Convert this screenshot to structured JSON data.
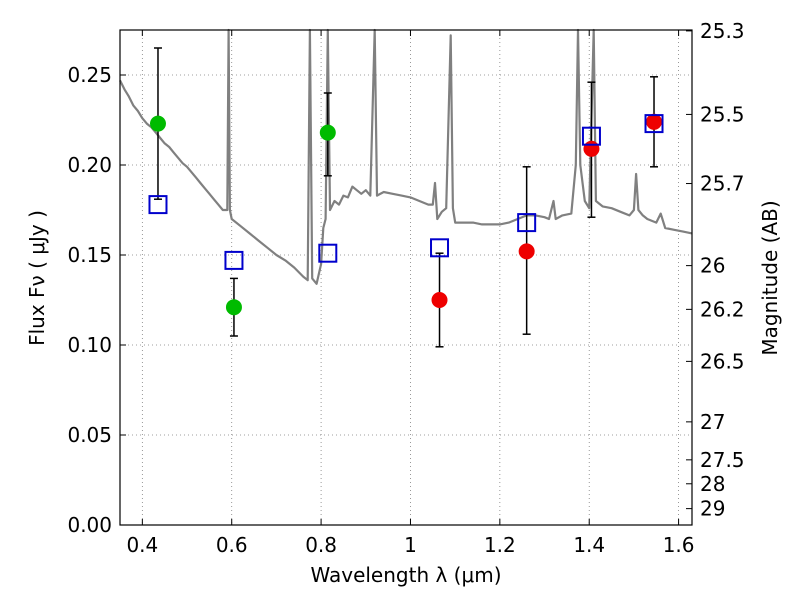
{
  "chart_data": {
    "type": "scatter",
    "xlabel": "Wavelength  λ (μm)",
    "ylabel": "Flux  Fν  ( μJy )",
    "ylabel_right": "Magnitude (AB)",
    "xlim": [
      0.35,
      1.63
    ],
    "ylim": [
      0.0,
      0.275
    ],
    "grid": true,
    "x_ticks": [
      0.4,
      0.6,
      0.8,
      1.0,
      1.2,
      1.4,
      1.6
    ],
    "x_tick_labels": [
      "0.4",
      "0.6",
      "0.8",
      "1",
      "1.2",
      "1.4",
      "1.6"
    ],
    "y_ticks": [
      0.0,
      0.05,
      0.1,
      0.15,
      0.2,
      0.25
    ],
    "y_tick_labels": [
      "0.00",
      "0.05",
      "0.10",
      "0.15",
      "0.20",
      "0.25"
    ],
    "right_ticks": [
      {
        "label": "25.3",
        "flux": 0.2745
      },
      {
        "label": "25.5",
        "flux": 0.2281
      },
      {
        "label": "25.7",
        "flux": 0.1897
      },
      {
        "label": "26",
        "flux": 0.1441
      },
      {
        "label": "26.2",
        "flux": 0.1198
      },
      {
        "label": "26.5",
        "flux": 0.0909
      },
      {
        "label": "27",
        "flux": 0.0573
      },
      {
        "label": "27.5",
        "flux": 0.0362
      },
      {
        "label": "28",
        "flux": 0.0229
      },
      {
        "label": "29",
        "flux": 0.0091
      }
    ],
    "colors": {
      "model": "#808080",
      "green": "#00bb00",
      "red": "#ee0000",
      "square": "#0000cc",
      "errorbar": "#000000",
      "grid": "#808080"
    },
    "series": [
      {
        "role": "model_spectrum",
        "style": "line",
        "points": [
          [
            0.35,
            0.247
          ],
          [
            0.36,
            0.242
          ],
          [
            0.37,
            0.238
          ],
          [
            0.38,
            0.233
          ],
          [
            0.39,
            0.23
          ],
          [
            0.4,
            0.226
          ],
          [
            0.41,
            0.223
          ],
          [
            0.42,
            0.221
          ],
          [
            0.43,
            0.218
          ],
          [
            0.44,
            0.215
          ],
          [
            0.45,
            0.212
          ],
          [
            0.46,
            0.21
          ],
          [
            0.47,
            0.207
          ],
          [
            0.48,
            0.204
          ],
          [
            0.49,
            0.201
          ],
          [
            0.5,
            0.199
          ],
          [
            0.51,
            0.196
          ],
          [
            0.52,
            0.193
          ],
          [
            0.53,
            0.19
          ],
          [
            0.54,
            0.187
          ],
          [
            0.55,
            0.184
          ],
          [
            0.56,
            0.181
          ],
          [
            0.57,
            0.178
          ],
          [
            0.58,
            0.175
          ],
          [
            0.59,
            0.175
          ],
          [
            0.593,
            0.275
          ],
          [
            0.596,
            0.175
          ],
          [
            0.6,
            0.17
          ],
          [
            0.62,
            0.166
          ],
          [
            0.64,
            0.162
          ],
          [
            0.66,
            0.158
          ],
          [
            0.68,
            0.154
          ],
          [
            0.7,
            0.15
          ],
          [
            0.72,
            0.147
          ],
          [
            0.74,
            0.143
          ],
          [
            0.76,
            0.138
          ],
          [
            0.77,
            0.136
          ],
          [
            0.775,
            0.275
          ],
          [
            0.78,
            0.137
          ],
          [
            0.79,
            0.134
          ],
          [
            0.8,
            0.145
          ],
          [
            0.805,
            0.165
          ],
          [
            0.81,
            0.17
          ],
          [
            0.815,
            0.275
          ],
          [
            0.82,
            0.175
          ],
          [
            0.83,
            0.18
          ],
          [
            0.84,
            0.178
          ],
          [
            0.85,
            0.183
          ],
          [
            0.86,
            0.182
          ],
          [
            0.87,
            0.188
          ],
          [
            0.88,
            0.186
          ],
          [
            0.89,
            0.184
          ],
          [
            0.9,
            0.186
          ],
          [
            0.91,
            0.183
          ],
          [
            0.92,
            0.275
          ],
          [
            0.925,
            0.183
          ],
          [
            0.94,
            0.185
          ],
          [
            0.96,
            0.184
          ],
          [
            0.98,
            0.183
          ],
          [
            1.0,
            0.182
          ],
          [
            1.02,
            0.18
          ],
          [
            1.04,
            0.178
          ],
          [
            1.05,
            0.178
          ],
          [
            1.055,
            0.19
          ],
          [
            1.06,
            0.17
          ],
          [
            1.07,
            0.174
          ],
          [
            1.08,
            0.176
          ],
          [
            1.09,
            0.272
          ],
          [
            1.095,
            0.176
          ],
          [
            1.1,
            0.168
          ],
          [
            1.12,
            0.168
          ],
          [
            1.14,
            0.168
          ],
          [
            1.16,
            0.167
          ],
          [
            1.18,
            0.167
          ],
          [
            1.2,
            0.167
          ],
          [
            1.22,
            0.168
          ],
          [
            1.24,
            0.17
          ],
          [
            1.26,
            0.172
          ],
          [
            1.28,
            0.172
          ],
          [
            1.3,
            0.171
          ],
          [
            1.31,
            0.17
          ],
          [
            1.32,
            0.18
          ],
          [
            1.325,
            0.17
          ],
          [
            1.34,
            0.172
          ],
          [
            1.36,
            0.173
          ],
          [
            1.37,
            0.2
          ],
          [
            1.375,
            0.275
          ],
          [
            1.38,
            0.2
          ],
          [
            1.39,
            0.18
          ],
          [
            1.4,
            0.176
          ],
          [
            1.41,
            0.275
          ],
          [
            1.415,
            0.18
          ],
          [
            1.43,
            0.177
          ],
          [
            1.45,
            0.176
          ],
          [
            1.47,
            0.174
          ],
          [
            1.49,
            0.172
          ],
          [
            1.5,
            0.175
          ],
          [
            1.505,
            0.195
          ],
          [
            1.51,
            0.175
          ],
          [
            1.52,
            0.172
          ],
          [
            1.53,
            0.17
          ],
          [
            1.55,
            0.168
          ],
          [
            1.56,
            0.173
          ],
          [
            1.57,
            0.165
          ],
          [
            1.59,
            0.164
          ],
          [
            1.61,
            0.163
          ],
          [
            1.63,
            0.162
          ]
        ]
      },
      {
        "role": "observed_green",
        "style": "circle",
        "points": [
          {
            "x": 0.435,
            "y": 0.223,
            "ylo": 0.181,
            "yhi": 0.265
          },
          {
            "x": 0.605,
            "y": 0.121,
            "ylo": 0.105,
            "yhi": 0.137
          },
          {
            "x": 0.815,
            "y": 0.218,
            "ylo": 0.194,
            "yhi": 0.24
          }
        ]
      },
      {
        "role": "observed_red",
        "style": "circle",
        "points": [
          {
            "x": 1.065,
            "y": 0.125,
            "ylo": 0.099,
            "yhi": 0.151
          },
          {
            "x": 1.26,
            "y": 0.152,
            "ylo": 0.106,
            "yhi": 0.199
          },
          {
            "x": 1.405,
            "y": 0.209,
            "ylo": 0.171,
            "yhi": 0.246
          },
          {
            "x": 1.545,
            "y": 0.224,
            "ylo": 0.199,
            "yhi": 0.249
          }
        ]
      },
      {
        "role": "model_photometry",
        "style": "square",
        "points": [
          {
            "x": 0.435,
            "y": 0.178
          },
          {
            "x": 0.605,
            "y": 0.147
          },
          {
            "x": 0.815,
            "y": 0.151
          },
          {
            "x": 1.065,
            "y": 0.154
          },
          {
            "x": 1.26,
            "y": 0.168
          },
          {
            "x": 1.405,
            "y": 0.216
          },
          {
            "x": 1.545,
            "y": 0.223
          }
        ]
      }
    ]
  }
}
